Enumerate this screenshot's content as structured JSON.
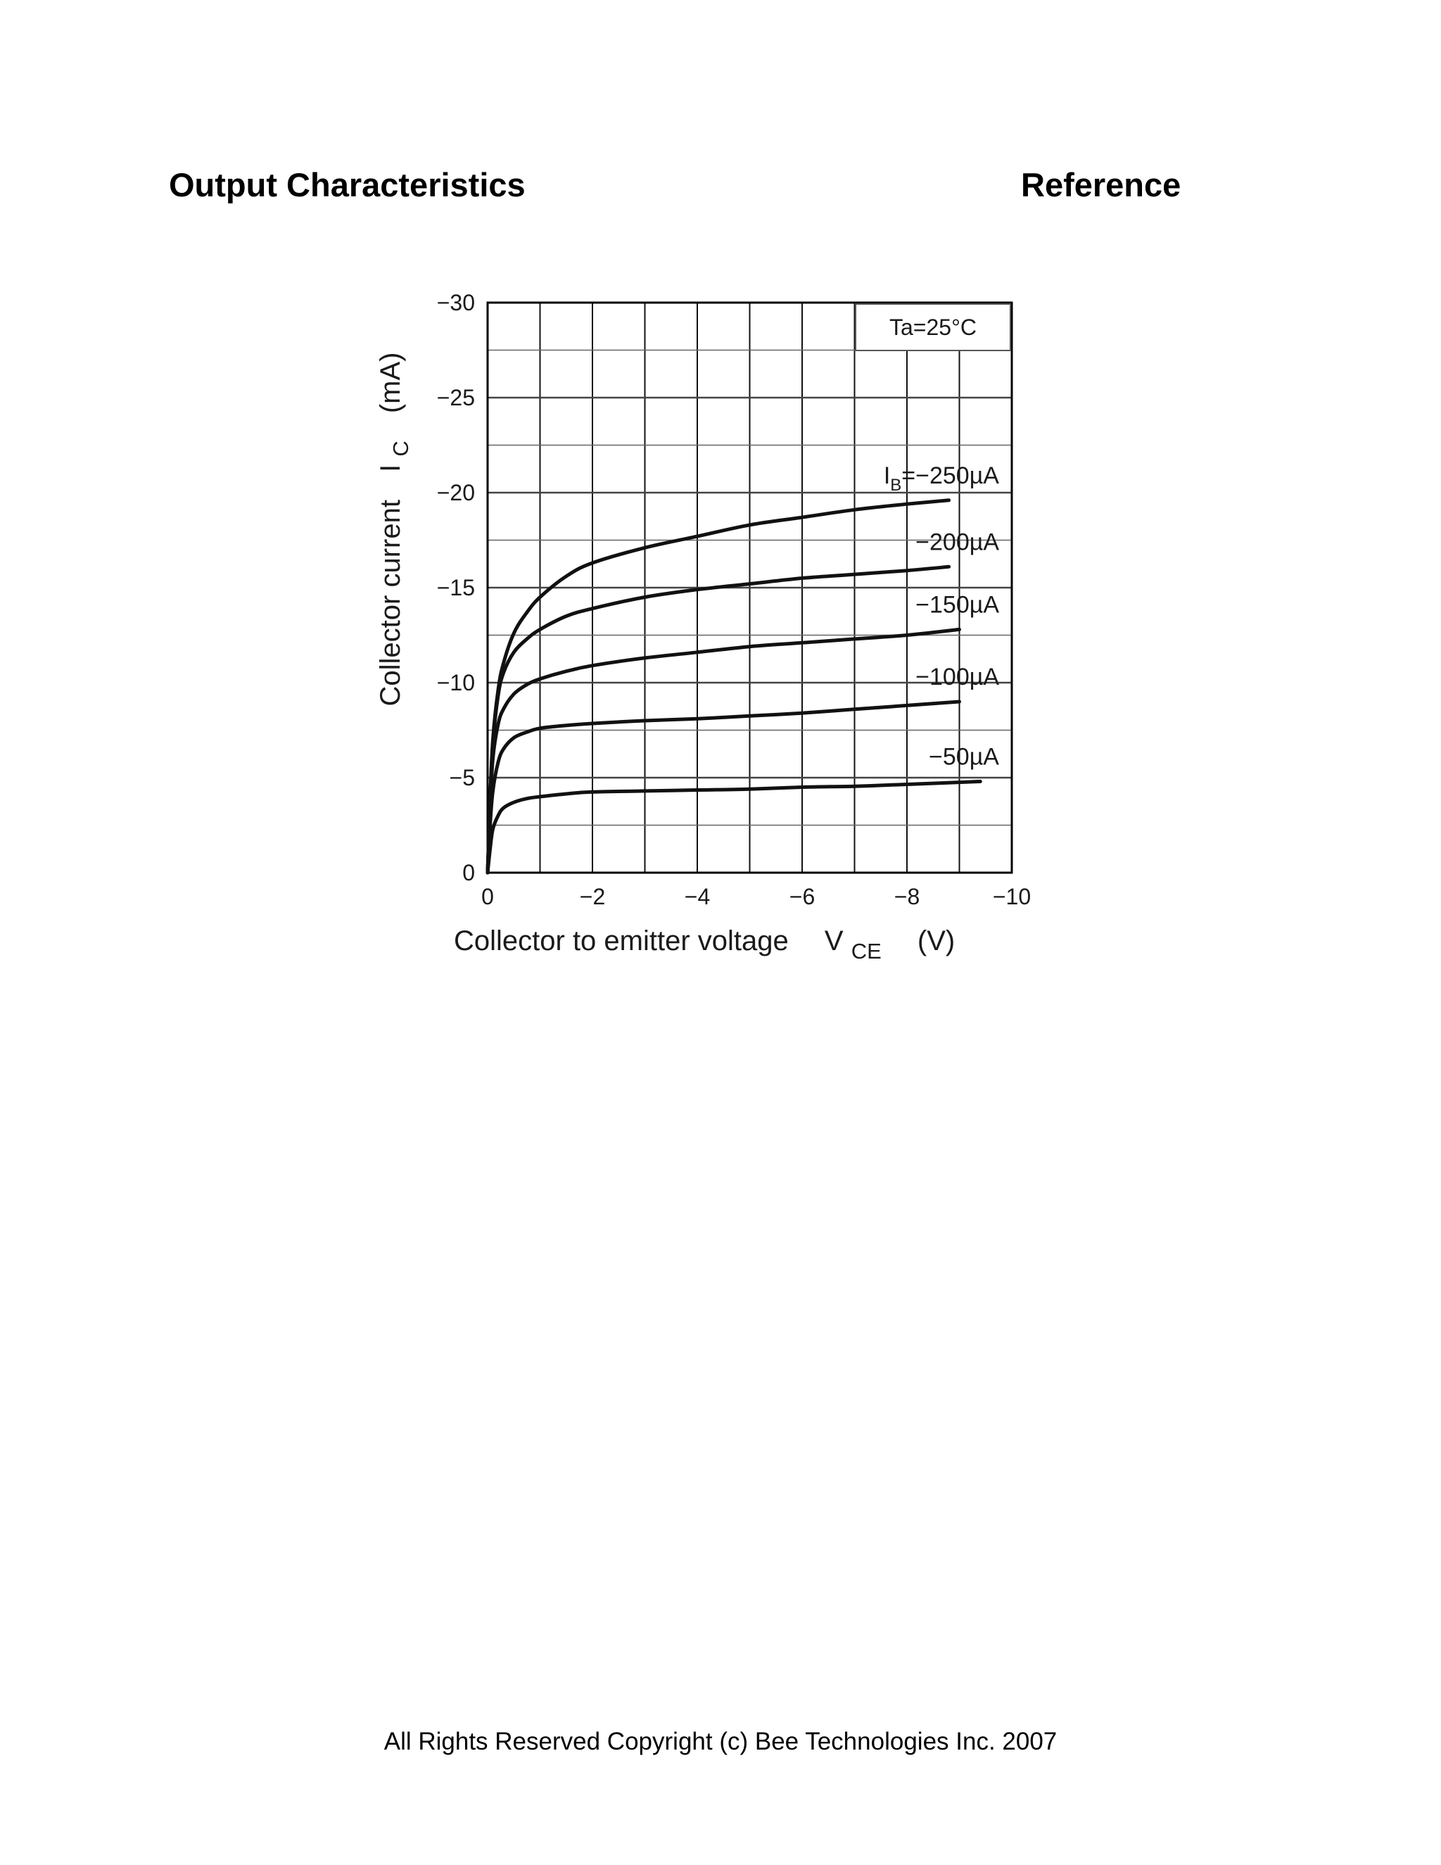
{
  "header": {
    "title_left": "Output Characteristics",
    "title_right": "Reference"
  },
  "footer": {
    "copyright": "All Rights Reserved Copyright (c) Bee Technologies Inc. 2007"
  },
  "chart_data": {
    "type": "line",
    "title": "",
    "xlabel": "Collector to emitter voltage",
    "xlabel_symbol": "V",
    "xlabel_subscript": "CE",
    "xlabel_unit": "(V)",
    "ylabel": "Collector current",
    "ylabel_symbol": "I",
    "ylabel_subscript": "C",
    "ylabel_unit": "(mA)",
    "xlim": [
      0,
      -10
    ],
    "ylim": [
      0,
      -30
    ],
    "x_ticks": [
      0,
      -2,
      -4,
      -6,
      -8,
      -10
    ],
    "x_tick_labels": [
      "0",
      "−2",
      "−4",
      "−6",
      "−8",
      "−10"
    ],
    "y_ticks": [
      0,
      -5,
      -10,
      -15,
      -20,
      -25,
      -30
    ],
    "y_tick_labels": [
      "0",
      "−5",
      "−10",
      "−15",
      "−20",
      "−25",
      "−30"
    ],
    "grid": true,
    "condition_box": "Ta=25°C",
    "series": [
      {
        "name": "IB=−250µA",
        "label_parts": {
          "sym": "I",
          "sub": "B",
          "rest": "=−250µA"
        },
        "x": [
          0,
          -0.05,
          -0.1,
          -0.2,
          -0.3,
          -0.5,
          -0.75,
          -1,
          -1.5,
          -2,
          -3,
          -4,
          -5,
          -6,
          -7,
          -8,
          -8.8
        ],
        "y": [
          0,
          -4,
          -7,
          -9.6,
          -11,
          -12.6,
          -13.7,
          -14.5,
          -15.6,
          -16.3,
          -17.1,
          -17.7,
          -18.3,
          -18.7,
          -19.1,
          -19.4,
          -19.6
        ]
      },
      {
        "name": "−200µA",
        "label_parts": {
          "sym": "",
          "sub": "",
          "rest": "−200µA"
        },
        "x": [
          0,
          -0.05,
          -0.1,
          -0.2,
          -0.3,
          -0.5,
          -0.75,
          -1,
          -1.5,
          -2,
          -3,
          -4,
          -5,
          -6,
          -7,
          -8,
          -8.8
        ],
        "y": [
          0,
          -4,
          -6.8,
          -9.3,
          -10.5,
          -11.6,
          -12.3,
          -12.8,
          -13.5,
          -13.9,
          -14.5,
          -14.9,
          -15.2,
          -15.5,
          -15.7,
          -15.9,
          -16.1
        ]
      },
      {
        "name": "−150µA",
        "label_parts": {
          "sym": "",
          "sub": "",
          "rest": "−150µA"
        },
        "x": [
          0,
          -0.05,
          -0.1,
          -0.2,
          -0.3,
          -0.5,
          -0.75,
          -1,
          -1.5,
          -2,
          -3,
          -4,
          -5,
          -6,
          -7,
          -8,
          -9
        ],
        "y": [
          0,
          -3.5,
          -6,
          -7.8,
          -8.6,
          -9.4,
          -9.9,
          -10.2,
          -10.6,
          -10.9,
          -11.3,
          -11.6,
          -11.9,
          -12.1,
          -12.3,
          -12.5,
          -12.8
        ]
      },
      {
        "name": "−100µA",
        "label_parts": {
          "sym": "",
          "sub": "",
          "rest": "−100µA"
        },
        "x": [
          0,
          -0.05,
          -0.1,
          -0.2,
          -0.3,
          -0.5,
          -0.75,
          -1,
          -1.5,
          -2,
          -3,
          -4,
          -5,
          -6,
          -7,
          -8,
          -9
        ],
        "y": [
          0,
          -2.6,
          -4.3,
          -5.8,
          -6.5,
          -7.1,
          -7.4,
          -7.6,
          -7.75,
          -7.85,
          -8,
          -8.1,
          -8.25,
          -8.4,
          -8.6,
          -8.8,
          -9
        ]
      },
      {
        "name": "−50µA",
        "label_parts": {
          "sym": "",
          "sub": "",
          "rest": "−50µA"
        },
        "x": [
          0,
          -0.05,
          -0.1,
          -0.2,
          -0.3,
          -0.5,
          -0.75,
          -1,
          -1.5,
          -2,
          -3,
          -4,
          -5,
          -6,
          -7,
          -8,
          -9.4
        ],
        "y": [
          0,
          -1.3,
          -2.3,
          -3,
          -3.4,
          -3.7,
          -3.9,
          -4,
          -4.15,
          -4.25,
          -4.3,
          -4.35,
          -4.4,
          -4.5,
          -4.55,
          -4.65,
          -4.8
        ]
      }
    ]
  }
}
